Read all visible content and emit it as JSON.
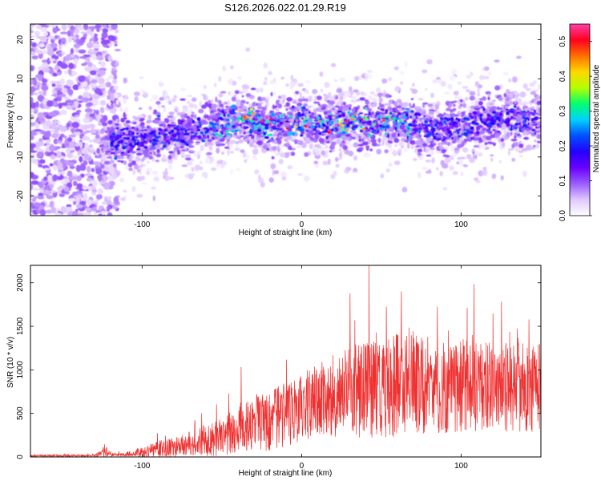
{
  "title": "S126.2026.022.01.29.R19",
  "chart_data": [
    {
      "type": "heatmap",
      "xlabel": "Height of straight line (km)",
      "ylabel": "Frequency (Hz)",
      "xlim": [
        -170,
        150
      ],
      "ylim": [
        -25,
        24
      ],
      "xticks": [
        -100,
        0,
        100
      ],
      "yticks": [
        -20,
        -10,
        0,
        10,
        20
      ],
      "colorbar": {
        "label": "Normalized spectral amplitude",
        "range": [
          0.0,
          0.55
        ],
        "ticks": [
          "0.0",
          "0.1",
          "0.2",
          "0.3",
          "0.4",
          "0.5"
        ],
        "colors": [
          "#ffffff",
          "#e0c8ff",
          "#9a5cff",
          "#6a00ff",
          "#2400ff",
          "#0050ff",
          "#00d0ff",
          "#00ff70",
          "#b4ff00",
          "#ffd800",
          "#ff7000",
          "#ff0020",
          "#ff40a8"
        ]
      },
      "trend_frequency_hz": [
        [
          -170,
          -5
        ],
        [
          -125,
          -7
        ],
        [
          -100,
          -5
        ],
        [
          -60,
          -3
        ],
        [
          -40,
          0
        ],
        [
          -20,
          -2
        ],
        [
          0,
          -1
        ],
        [
          20,
          -2
        ],
        [
          40,
          -1
        ],
        [
          60,
          -1
        ],
        [
          80,
          -3
        ],
        [
          100,
          -2
        ],
        [
          120,
          0
        ],
        [
          150,
          -1
        ]
      ]
    },
    {
      "type": "line",
      "xlabel": "Height of straight line (km)",
      "ylabel": "SNR (10 * v/v)",
      "xlim": [
        -170,
        150
      ],
      "ylim": [
        0,
        2200
      ],
      "xticks": [
        -100,
        0,
        100
      ],
      "yticks": [
        0,
        500,
        1000,
        1500,
        2000
      ],
      "color": "#ef3030",
      "envelope": {
        "x": [
          -170,
          -130,
          -122,
          -118,
          -110,
          -100,
          -80,
          -60,
          -40,
          -20,
          0,
          20,
          40,
          60,
          80,
          100,
          120,
          150
        ],
        "mean": [
          15,
          15,
          60,
          25,
          30,
          60,
          120,
          180,
          300,
          420,
          560,
          700,
          780,
          820,
          830,
          820,
          800,
          780
        ],
        "amplitude": [
          15,
          15,
          80,
          25,
          30,
          80,
          150,
          220,
          350,
          450,
          500,
          600,
          700,
          750,
          700,
          680,
          650,
          650
        ]
      }
    }
  ]
}
